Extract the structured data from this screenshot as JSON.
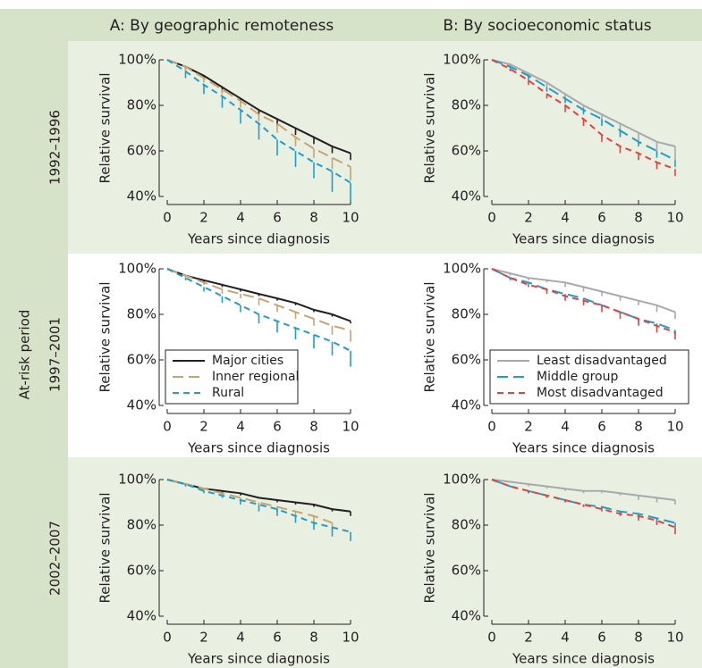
{
  "column_titles": [
    "A: By geographic remoteness",
    "B: By socioeconomic status"
  ],
  "row_labels": [
    "1992–1996",
    "1997–2001",
    "2002–2007"
  ],
  "row_axis_title": "At-risk period",
  "chart_data": [
    {
      "type": "line",
      "xlabel": "Years since diagnosis",
      "ylabel": "Relative survival",
      "x": [
        0,
        1,
        2,
        3,
        4,
        5,
        6,
        7,
        8,
        9,
        10
      ],
      "xlim": [
        0,
        10
      ],
      "xticks": [
        0,
        2,
        4,
        6,
        8,
        10
      ],
      "ylim": [
        40,
        100
      ],
      "yticks": [
        {
          "value": 40,
          "label": "40%"
        },
        {
          "value": 60,
          "label": "60%"
        },
        {
          "value": 80,
          "label": "80%"
        },
        {
          "value": 100,
          "label": "100%"
        }
      ],
      "grid": false,
      "legend": null,
      "series": [
        {
          "color": "#231f20",
          "line_style": "solid",
          "values": [
            100,
            97,
            93,
            88,
            83,
            78,
            74,
            70,
            66,
            62,
            59
          ],
          "lower": [
            null,
            96,
            92,
            86,
            81,
            76,
            71,
            67,
            63,
            59,
            56
          ]
        },
        {
          "color": "#c8a46e",
          "line_style": "long-dash",
          "values": [
            100,
            97,
            92,
            87,
            82,
            76,
            72,
            66,
            61,
            57,
            53
          ],
          "lower": [
            null,
            95,
            90,
            85,
            79,
            73,
            68,
            62,
            57,
            52,
            47
          ]
        },
        {
          "color": "#1a9fd0",
          "line_style": "dash",
          "values": [
            100,
            95,
            89,
            84,
            78,
            72,
            65,
            60,
            55,
            51,
            46
          ],
          "lower": [
            null,
            92,
            85,
            79,
            72,
            65,
            58,
            53,
            48,
            42,
            38
          ]
        }
      ]
    },
    {
      "type": "line",
      "xlabel": "Years since diagnosis",
      "ylabel": "Relative survival",
      "x": [
        0,
        1,
        2,
        3,
        4,
        5,
        6,
        7,
        8,
        9,
        10
      ],
      "xlim": [
        0,
        10
      ],
      "xticks": [
        0,
        2,
        4,
        6,
        8,
        10
      ],
      "ylim": [
        40,
        100
      ],
      "yticks": [
        {
          "value": 40,
          "label": "40%"
        },
        {
          "value": 60,
          "label": "60%"
        },
        {
          "value": 80,
          "label": "80%"
        },
        {
          "value": 100,
          "label": "100%"
        }
      ],
      "grid": false,
      "legend": null,
      "series": [
        {
          "color": "#a7a9ac",
          "line_style": "solid",
          "values": [
            100,
            98,
            94,
            90,
            85,
            80,
            76,
            72,
            68,
            64,
            62
          ],
          "lower": [
            null,
            97,
            92,
            88,
            82,
            77,
            72,
            67,
            63,
            58,
            56
          ]
        },
        {
          "color": "#1a9fd0",
          "line_style": "long-dash",
          "values": [
            100,
            97,
            93,
            88,
            83,
            78,
            74,
            69,
            64,
            60,
            56
          ],
          "lower": [
            null,
            96,
            91,
            86,
            81,
            76,
            71,
            66,
            62,
            57,
            53
          ]
        },
        {
          "color": "#e8413b",
          "line_style": "dash",
          "values": [
            100,
            96,
            91,
            85,
            80,
            74,
            67,
            62,
            59,
            55,
            52
          ],
          "lower": [
            null,
            95,
            89,
            83,
            77,
            71,
            64,
            59,
            56,
            52,
            49
          ]
        }
      ]
    },
    {
      "type": "line",
      "xlabel": "Years since diagnosis",
      "ylabel": "Relative survival",
      "x": [
        0,
        1,
        2,
        3,
        4,
        5,
        6,
        7,
        8,
        9,
        10
      ],
      "xlim": [
        0,
        10
      ],
      "xticks": [
        0,
        2,
        4,
        6,
        8,
        10
      ],
      "ylim": [
        40,
        100
      ],
      "yticks": [
        {
          "value": 40,
          "label": "40%"
        },
        {
          "value": 60,
          "label": "60%"
        },
        {
          "value": 80,
          "label": "80%"
        },
        {
          "value": 100,
          "label": "100%"
        }
      ],
      "grid": false,
      "legend": "lower left",
      "series": [
        {
          "name": "Major cities",
          "color": "#231f20",
          "line_style": "solid",
          "values": [
            100,
            97,
            95,
            93,
            91,
            89,
            87,
            85,
            82,
            80,
            77
          ],
          "lower": [
            null,
            97,
            94,
            92,
            90,
            88,
            86,
            84,
            81,
            79,
            76
          ]
        },
        {
          "name": "Inner regional",
          "color": "#c8a46e",
          "line_style": "long-dash",
          "values": [
            100,
            97,
            94,
            91,
            89,
            87,
            84,
            81,
            78,
            75,
            73
          ],
          "lower": [
            null,
            96,
            93,
            89,
            87,
            84,
            81,
            78,
            75,
            71,
            68
          ]
        },
        {
          "name": "Rural",
          "color": "#1a9fd0",
          "line_style": "dash",
          "values": [
            100,
            96,
            92,
            88,
            84,
            80,
            77,
            74,
            71,
            68,
            64
          ],
          "lower": [
            null,
            95,
            90,
            85,
            81,
            76,
            72,
            69,
            65,
            62,
            57
          ]
        }
      ]
    },
    {
      "type": "line",
      "xlabel": "Years since diagnosis",
      "ylabel": "Relative survival",
      "x": [
        0,
        1,
        2,
        3,
        4,
        5,
        6,
        7,
        8,
        9,
        10
      ],
      "xlim": [
        0,
        10
      ],
      "xticks": [
        0,
        2,
        4,
        6,
        8,
        10
      ],
      "ylim": [
        40,
        100
      ],
      "yticks": [
        {
          "value": 40,
          "label": "40%"
        },
        {
          "value": 60,
          "label": "60%"
        },
        {
          "value": 80,
          "label": "80%"
        },
        {
          "value": 100,
          "label": "100%"
        }
      ],
      "grid": false,
      "legend": "lower left",
      "series": [
        {
          "name": "Least disadvantaged",
          "color": "#a7a9ac",
          "line_style": "solid",
          "values": [
            100,
            98,
            96,
            95,
            94,
            92,
            90,
            88,
            86,
            84,
            81
          ],
          "lower": [
            null,
            97,
            95,
            94,
            92,
            90,
            88,
            86,
            84,
            81,
            78
          ]
        },
        {
          "name": "Middle group",
          "color": "#1a9fd0",
          "line_style": "long-dash",
          "values": [
            100,
            96,
            94,
            91,
            89,
            87,
            84,
            81,
            78,
            76,
            73
          ],
          "lower": [
            null,
            96,
            93,
            90,
            88,
            86,
            83,
            80,
            77,
            74,
            71
          ]
        },
        {
          "name": "Most disadvantaged",
          "color": "#e8413b",
          "line_style": "dash",
          "values": [
            100,
            96,
            93,
            91,
            88,
            86,
            84,
            81,
            78,
            75,
            72
          ],
          "lower": [
            null,
            95,
            92,
            89,
            86,
            84,
            81,
            78,
            75,
            72,
            69
          ]
        }
      ]
    },
    {
      "type": "line",
      "xlabel": "Years since diagnosis",
      "ylabel": "Relative survival",
      "x": [
        0,
        1,
        2,
        3,
        4,
        5,
        6,
        7,
        8,
        9,
        10
      ],
      "xlim": [
        0,
        10
      ],
      "xticks": [
        0,
        2,
        4,
        6,
        8,
        10
      ],
      "ylim": [
        40,
        100
      ],
      "yticks": [
        {
          "value": 40,
          "label": "40%"
        },
        {
          "value": 60,
          "label": "60%"
        },
        {
          "value": 80,
          "label": "80%"
        },
        {
          "value": 100,
          "label": "100%"
        }
      ],
      "grid": false,
      "legend": null,
      "series": [
        {
          "color": "#231f20",
          "line_style": "solid",
          "values": [
            100,
            98,
            96,
            95,
            94,
            92,
            91,
            90,
            89,
            87,
            86
          ],
          "lower": [
            null,
            98,
            96,
            94,
            93,
            92,
            90,
            89,
            88,
            86,
            84
          ]
        },
        {
          "color": "#c8a46e",
          "line_style": "long-dash",
          "values": [
            100,
            98,
            96,
            94,
            92,
            90,
            88,
            86,
            84,
            81,
            null
          ],
          "lower": [
            null,
            97,
            95,
            93,
            91,
            89,
            86,
            84,
            81,
            78,
            null
          ]
        },
        {
          "color": "#1a9fd0",
          "line_style": "dash",
          "values": [
            100,
            98,
            95,
            93,
            91,
            89,
            87,
            84,
            81,
            79,
            77
          ],
          "lower": [
            null,
            97,
            94,
            92,
            89,
            86,
            84,
            81,
            78,
            75,
            73
          ]
        }
      ]
    },
    {
      "type": "line",
      "xlabel": "Years since diagnosis",
      "ylabel": "Relative survival",
      "x": [
        0,
        1,
        2,
        3,
        4,
        5,
        6,
        7,
        8,
        9,
        10
      ],
      "xlim": [
        0,
        10
      ],
      "xticks": [
        0,
        2,
        4,
        6,
        8,
        10
      ],
      "ylim": [
        40,
        100
      ],
      "yticks": [
        {
          "value": 40,
          "label": "40%"
        },
        {
          "value": 60,
          "label": "60%"
        },
        {
          "value": 80,
          "label": "80%"
        },
        {
          "value": 100,
          "label": "100%"
        }
      ],
      "grid": false,
      "legend": null,
      "series": [
        {
          "color": "#a7a9ac",
          "line_style": "solid",
          "values": [
            100,
            99,
            98,
            97,
            96,
            95,
            95,
            94,
            93,
            92,
            91
          ],
          "lower": [
            null,
            99,
            97,
            96,
            95,
            94,
            94,
            93,
            91,
            90,
            89
          ]
        },
        {
          "color": "#1a9fd0",
          "line_style": "long-dash",
          "values": [
            100,
            97,
            95,
            93,
            91,
            89,
            88,
            86,
            85,
            83,
            81
          ],
          "lower": [
            null,
            97,
            94,
            92,
            90,
            88,
            87,
            85,
            83,
            81,
            79
          ]
        },
        {
          "color": "#e8413b",
          "line_style": "dash",
          "values": [
            100,
            97,
            95,
            93,
            91,
            89,
            87,
            85,
            84,
            82,
            79
          ],
          "lower": [
            null,
            97,
            94,
            92,
            90,
            88,
            86,
            84,
            82,
            80,
            76
          ]
        }
      ]
    }
  ]
}
